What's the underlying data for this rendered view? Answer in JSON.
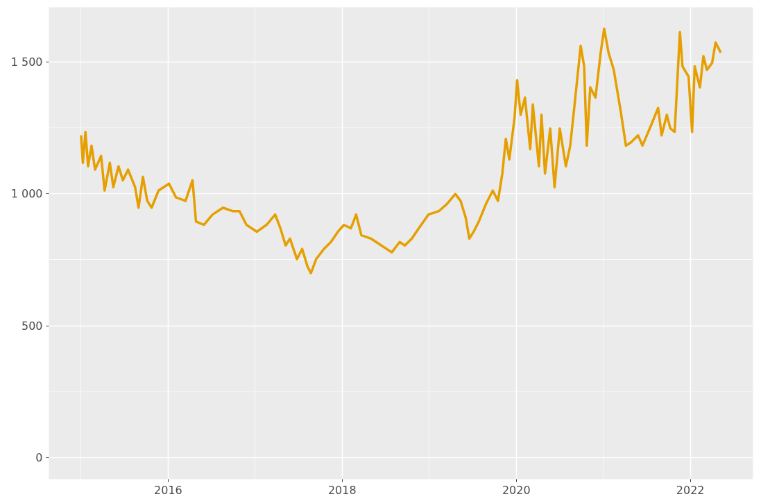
{
  "chart_data": {
    "type": "line",
    "x": [
      2015.0,
      2015.02,
      2015.05,
      2015.08,
      2015.12,
      2015.16,
      2015.23,
      2015.27,
      2015.33,
      2015.37,
      2015.43,
      2015.48,
      2015.54,
      2015.62,
      2015.66,
      2015.71,
      2015.76,
      2015.81,
      2015.89,
      2016.01,
      2016.09,
      2016.2,
      2016.28,
      2016.32,
      2016.41,
      2016.51,
      2016.63,
      2016.74,
      2016.82,
      2016.9,
      2017.02,
      2017.13,
      2017.23,
      2017.29,
      2017.35,
      2017.4,
      2017.48,
      2017.54,
      2017.6,
      2017.64,
      2017.7,
      2017.79,
      2017.87,
      2017.95,
      2018.02,
      2018.1,
      2018.16,
      2018.22,
      2018.33,
      2018.45,
      2018.57,
      2018.66,
      2018.72,
      2018.8,
      2018.88,
      2018.99,
      2019.11,
      2019.2,
      2019.3,
      2019.36,
      2019.42,
      2019.46,
      2019.51,
      2019.57,
      2019.65,
      2019.73,
      2019.79,
      2019.84,
      2019.88,
      2019.92,
      2019.98,
      2020.01,
      2020.05,
      2020.1,
      2020.16,
      2020.19,
      2020.26,
      2020.29,
      2020.33,
      2020.39,
      2020.44,
      2020.5,
      2020.57,
      2020.62,
      2020.67,
      2020.74,
      2020.78,
      2020.81,
      2020.85,
      2020.91,
      2020.97,
      2021.01,
      2021.06,
      2021.12,
      2021.2,
      2021.26,
      2021.32,
      2021.4,
      2021.45,
      2021.55,
      2021.63,
      2021.67,
      2021.73,
      2021.77,
      2021.82,
      2021.88,
      2021.91,
      2021.98,
      2022.02,
      2022.05,
      2022.11,
      2022.15,
      2022.19,
      2022.25,
      2022.29,
      2022.35
    ],
    "series": [
      {
        "color": "#e69f00",
        "values": [
          1221,
          1117,
          1234,
          1104,
          1182,
          1091,
          1143,
          1012,
          1117,
          1025,
          1104,
          1051,
          1091,
          1025,
          947,
          1064,
          973,
          947,
          1012,
          1038,
          986,
          973,
          1051,
          895,
          882,
          921,
          947,
          934,
          934,
          882,
          856,
          882,
          921,
          869,
          804,
          830,
          752,
          791,
          725,
          699,
          752,
          791,
          817,
          856,
          882,
          869,
          921,
          843,
          830,
          804,
          778,
          817,
          804,
          830,
          869,
          921,
          934,
          960,
          999,
          973,
          908,
          830,
          856,
          895,
          960,
          1012,
          973,
          1077,
          1208,
          1130,
          1286,
          1430,
          1299,
          1364,
          1169,
          1338,
          1104,
          1299,
          1077,
          1247,
          1025,
          1247,
          1104,
          1182,
          1338,
          1560,
          1482,
          1182,
          1403,
          1364,
          1534,
          1625,
          1534,
          1469,
          1312,
          1182,
          1195,
          1221,
          1182,
          1260,
          1325,
          1221,
          1299,
          1247,
          1234,
          1612,
          1482,
          1443,
          1234,
          1482,
          1403,
          1521,
          1469,
          1495,
          1573,
          1534
        ]
      }
    ],
    "xlim": [
      2014.63,
      2022.72
    ],
    "ylim": [
      -81,
      1706
    ],
    "xticks": [
      2016,
      2018,
      2020,
      2022
    ],
    "yticks": [
      0,
      500,
      {
        "value": 1000,
        "label": "1 000"
      },
      {
        "value": 1500,
        "label": "1 500"
      }
    ],
    "grid": true,
    "line_style": "solid",
    "marker": "none"
  }
}
